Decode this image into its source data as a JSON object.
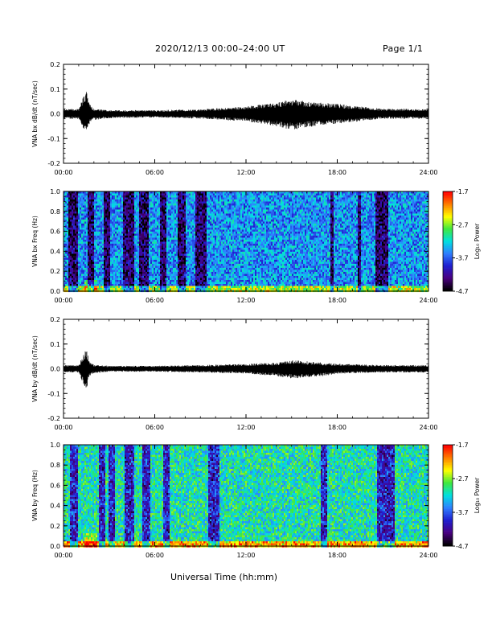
{
  "header": {
    "title": "2020/12/13  00:00–24:00 UT",
    "page": "Page 1/1"
  },
  "footer": {
    "xlabel": "Universal Time (hh:mm)"
  },
  "colors": {
    "trace": "#000000",
    "colorscale": [
      "#000000",
      "#4b0082",
      "#1f1fd0",
      "#2f7fff",
      "#00e0e0",
      "#3fe83f",
      "#ffff00",
      "#ff7f00",
      "#ff0000"
    ]
  },
  "chart_data": [
    {
      "type": "line",
      "ylabel": "VNA bx dB/dt (nT/sec)",
      "xlim": [
        0,
        24
      ],
      "ylim": [
        -0.2,
        0.2
      ],
      "x_ticks": [
        "00:00",
        "06:00",
        "12:00",
        "18:00",
        "24:00"
      ],
      "y_ticks": [
        "0.2",
        "0.1",
        "0.0",
        "-0.1",
        "-0.2"
      ],
      "y_tick_values": [
        0.2,
        0.1,
        0.0,
        -0.1,
        -0.2
      ],
      "series": [
        {
          "x": [
            0,
            1,
            1.5,
            1.7,
            2,
            3,
            6,
            9,
            12,
            14,
            15,
            16,
            17,
            18,
            21,
            24
          ],
          "ymax": [
            0.02,
            0.02,
            0.1,
            0.04,
            0.02,
            0.015,
            0.015,
            0.018,
            0.03,
            0.045,
            0.06,
            0.05,
            0.045,
            0.04,
            0.02,
            0.02
          ],
          "ymin": [
            -0.02,
            -0.02,
            -0.085,
            -0.04,
            -0.025,
            -0.018,
            -0.015,
            -0.02,
            -0.03,
            -0.05,
            -0.065,
            -0.055,
            -0.045,
            -0.04,
            -0.02,
            -0.02
          ]
        }
      ]
    },
    {
      "type": "heatmap",
      "ylabel": "VNA bx Freq (Hz)",
      "xlim": [
        0,
        24
      ],
      "ylim": [
        0.0,
        1.0
      ],
      "x_ticks": [
        "00:00",
        "06:00",
        "12:00",
        "18:00",
        "24:00"
      ],
      "y_ticks": [
        "1.0",
        "0.8",
        "0.6",
        "0.4",
        "0.2",
        "0.0"
      ],
      "y_tick_values": [
        1.0,
        0.8,
        0.6,
        0.4,
        0.2,
        0.0
      ],
      "colorbar": {
        "label": "Log₁₀ Power",
        "ticks": [
          "-1.7",
          "-2.7",
          "-3.7",
          "-4.7"
        ],
        "range": [
          -4.7,
          -1.7
        ]
      },
      "dark_bands_hours": [
        [
          0.3,
          0.9
        ],
        [
          1.6,
          2.0
        ],
        [
          2.6,
          3.1
        ],
        [
          3.9,
          4.6
        ],
        [
          5.0,
          5.6
        ],
        [
          6.3,
          6.8
        ],
        [
          7.5,
          8.0
        ],
        [
          8.7,
          9.4
        ],
        [
          17.5,
          17.8
        ],
        [
          19.3,
          19.6
        ],
        [
          20.5,
          21.4
        ]
      ],
      "low_freq_strong_band_hz": 0.05,
      "background_level": -3.5
    },
    {
      "type": "line",
      "ylabel": "VNA by dB/dt (nT/sec)",
      "xlim": [
        0,
        24
      ],
      "ylim": [
        -0.2,
        0.2
      ],
      "x_ticks": [
        "00:00",
        "06:00",
        "12:00",
        "18:00",
        "24:00"
      ],
      "y_ticks": [
        "0.2",
        "0.1",
        "0.0",
        "-0.1",
        "-0.2"
      ],
      "y_tick_values": [
        0.2,
        0.1,
        0.0,
        -0.1,
        -0.2
      ],
      "series": [
        {
          "x": [
            0,
            1,
            1.5,
            1.7,
            2,
            3,
            6,
            9,
            12,
            14,
            15,
            16,
            17,
            18,
            21,
            24
          ],
          "ymax": [
            0.015,
            0.015,
            0.085,
            0.03,
            0.015,
            0.012,
            0.012,
            0.015,
            0.02,
            0.025,
            0.035,
            0.03,
            0.025,
            0.02,
            0.015,
            0.015
          ],
          "ymin": [
            -0.015,
            -0.015,
            -0.095,
            -0.03,
            -0.018,
            -0.012,
            -0.012,
            -0.015,
            -0.02,
            -0.03,
            -0.04,
            -0.035,
            -0.03,
            -0.02,
            -0.015,
            -0.015
          ]
        }
      ]
    },
    {
      "type": "heatmap",
      "ylabel": "VNA by Freq (Hz)",
      "xlim": [
        0,
        24
      ],
      "ylim": [
        0.0,
        1.0
      ],
      "x_ticks": [
        "00:00",
        "06:00",
        "12:00",
        "18:00",
        "24:00"
      ],
      "y_ticks": [
        "1.0",
        "0.8",
        "0.6",
        "0.4",
        "0.2",
        "0.0"
      ],
      "y_tick_values": [
        1.0,
        0.8,
        0.6,
        0.4,
        0.2,
        0.0
      ],
      "colorbar": {
        "label": "Log₁₀ Power",
        "ticks": [
          "-1.7",
          "-2.7",
          "-3.7",
          "-4.7"
        ],
        "range": [
          -4.7,
          -1.7
        ]
      },
      "dark_bands_hours": [
        [
          0.4,
          1.0
        ],
        [
          2.3,
          2.7
        ],
        [
          3.0,
          3.4
        ],
        [
          4.0,
          4.6
        ],
        [
          5.2,
          5.7
        ],
        [
          6.6,
          7.0
        ],
        [
          9.5,
          10.3
        ],
        [
          16.9,
          17.3
        ],
        [
          20.6,
          21.8
        ]
      ],
      "low_freq_strong_band_hz": 0.05,
      "background_level": -3.1
    }
  ]
}
